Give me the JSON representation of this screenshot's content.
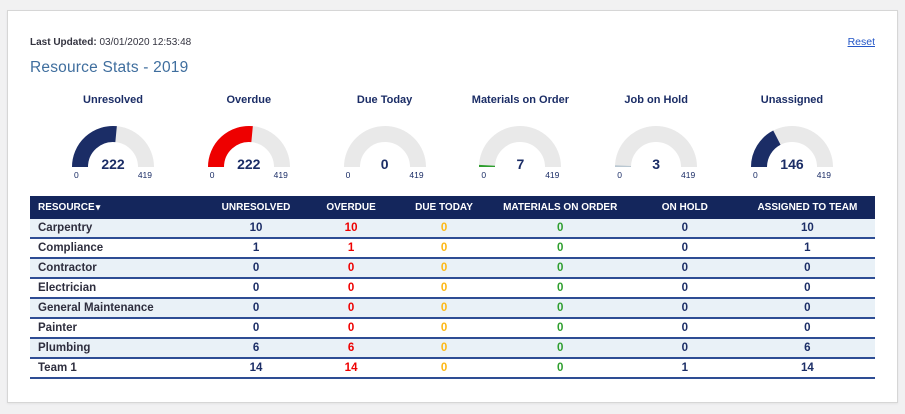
{
  "header": {
    "last_updated_label": "Last Updated:",
    "last_updated_value": "03/01/2020 12:53:48",
    "reset_label": "Reset",
    "title": "Resource Stats - 2019"
  },
  "colors": {
    "navy": "#1b2d66",
    "red": "#ee0000",
    "orange": "#fdb813",
    "green": "#2e9e2e",
    "hold_tick": "#b9c7d1",
    "gauge_track": "#e9e9e9",
    "header_bg": "#14265c",
    "row_stripe": "#e9f1f7",
    "row_border": "#2e4d94",
    "link_blue": "#2356c7"
  },
  "chart_data": {
    "type": "gauge-set",
    "min": 0,
    "max": 419,
    "gauges": [
      {
        "label": "Unresolved",
        "value": 222,
        "color": "#1b2d66"
      },
      {
        "label": "Overdue",
        "value": 222,
        "color": "#ee0000"
      },
      {
        "label": "Due Today",
        "value": 0,
        "color": "#fdb813"
      },
      {
        "label": "Materials on Order",
        "value": 7,
        "color": "#2e9e2e"
      },
      {
        "label": "Job on Hold",
        "value": 3,
        "color": "#b9c7d1"
      },
      {
        "label": "Unassigned",
        "value": 146,
        "color": "#1b2d66"
      }
    ]
  },
  "table": {
    "columns": [
      {
        "key": "resource",
        "label": "RESOURCE",
        "sort_indicator": "▾",
        "value_color": "#2e2e3e"
      },
      {
        "key": "unresolved",
        "label": "UNRESOLVED",
        "value_color": "#1b2d66"
      },
      {
        "key": "overdue",
        "label": "OVERDUE",
        "value_color": "#ee0000"
      },
      {
        "key": "due_today",
        "label": "DUE TODAY",
        "value_color": "#fdb813"
      },
      {
        "key": "materials_on_order",
        "label": "MATERIALS ON ORDER",
        "value_color": "#2e9e2e"
      },
      {
        "key": "on_hold",
        "label": "ON HOLD",
        "value_color": "#1b2d66"
      },
      {
        "key": "assigned_to_team",
        "label": "ASSIGNED TO TEAM",
        "value_color": "#1b2d66"
      }
    ],
    "rows": [
      {
        "resource": "Carpentry",
        "unresolved": 10,
        "overdue": 10,
        "due_today": 0,
        "materials_on_order": 0,
        "on_hold": 0,
        "assigned_to_team": 10
      },
      {
        "resource": "Compliance",
        "unresolved": 1,
        "overdue": 1,
        "due_today": 0,
        "materials_on_order": 0,
        "on_hold": 0,
        "assigned_to_team": 1
      },
      {
        "resource": "Contractor",
        "unresolved": 0,
        "overdue": 0,
        "due_today": 0,
        "materials_on_order": 0,
        "on_hold": 0,
        "assigned_to_team": 0
      },
      {
        "resource": "Electrician",
        "unresolved": 0,
        "overdue": 0,
        "due_today": 0,
        "materials_on_order": 0,
        "on_hold": 0,
        "assigned_to_team": 0
      },
      {
        "resource": "General Maintenance",
        "unresolved": 0,
        "overdue": 0,
        "due_today": 0,
        "materials_on_order": 0,
        "on_hold": 0,
        "assigned_to_team": 0
      },
      {
        "resource": "Painter",
        "unresolved": 0,
        "overdue": 0,
        "due_today": 0,
        "materials_on_order": 0,
        "on_hold": 0,
        "assigned_to_team": 0
      },
      {
        "resource": "Plumbing",
        "unresolved": 6,
        "overdue": 6,
        "due_today": 0,
        "materials_on_order": 0,
        "on_hold": 0,
        "assigned_to_team": 6
      },
      {
        "resource": "Team 1",
        "unresolved": 14,
        "overdue": 14,
        "due_today": 0,
        "materials_on_order": 0,
        "on_hold": 1,
        "assigned_to_team": 14
      }
    ]
  }
}
